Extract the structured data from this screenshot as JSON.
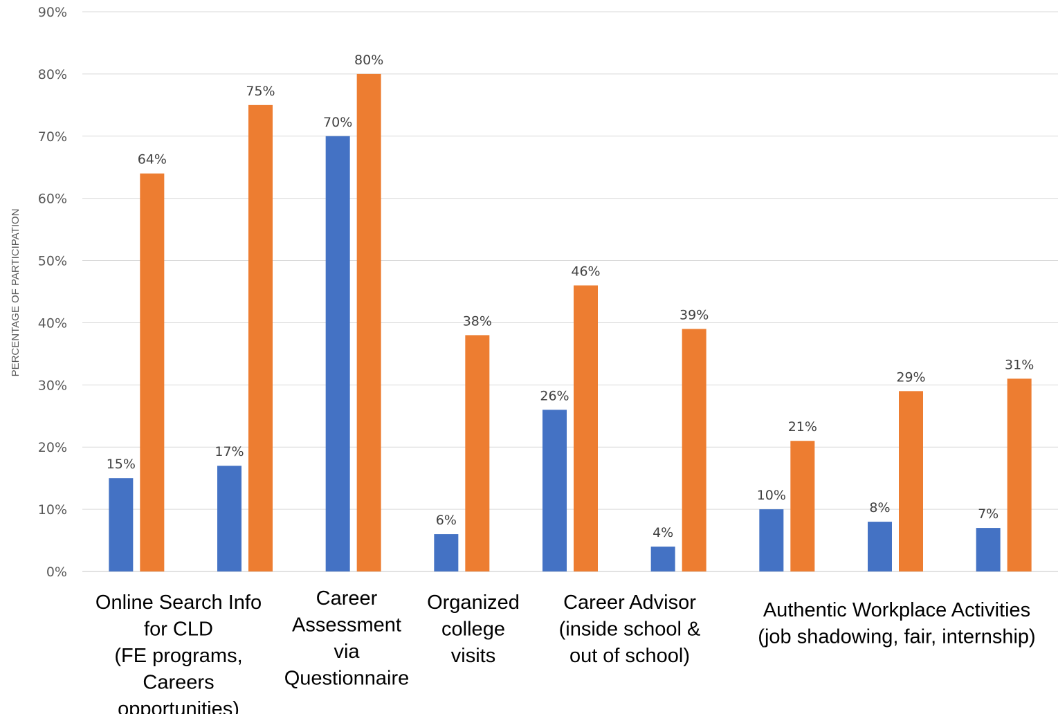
{
  "chart_data": {
    "type": "bar",
    "ylabel": "PERCENTAGE OF PARTICIPATION",
    "ylim": [
      0,
      90
    ],
    "yticks": [
      "0%",
      "10%",
      "20%",
      "30%",
      "40%",
      "50%",
      "60%",
      "70%",
      "80%",
      "90%"
    ],
    "grid": true,
    "legend": "none",
    "value_format": "percent",
    "colors": {
      "series_1": "#4472c4",
      "series_2": "#ed7d31"
    },
    "bar_pairs": [
      {
        "series_1": 15,
        "series_2": 64
      },
      {
        "series_1": 17,
        "series_2": 75
      },
      {
        "series_1": 70,
        "series_2": 80
      },
      {
        "series_1": 6,
        "series_2": 38
      },
      {
        "series_1": 26,
        "series_2": 46
      },
      {
        "series_1": 4,
        "series_2": 39
      },
      {
        "series_1": 10,
        "series_2": 21
      },
      {
        "series_1": 8,
        "series_2": 29
      },
      {
        "series_1": 7,
        "series_2": 31
      }
    ],
    "category_labels": [
      {
        "lines": [
          "Online Search Info",
          "for CLD",
          "(FE programs,",
          "Careers",
          "opportunities)"
        ]
      },
      {
        "lines": [
          "Career",
          "Assessment",
          "via",
          "Questionnaire"
        ]
      },
      {
        "lines": [
          "Organized",
          "college",
          "visits"
        ]
      },
      {
        "lines": [
          "Career Advisor",
          "(inside school &",
          "out of school)"
        ]
      },
      {
        "lines": [
          "Authentic Workplace Activities",
          "(job shadowing, fair, internship)"
        ]
      }
    ]
  }
}
